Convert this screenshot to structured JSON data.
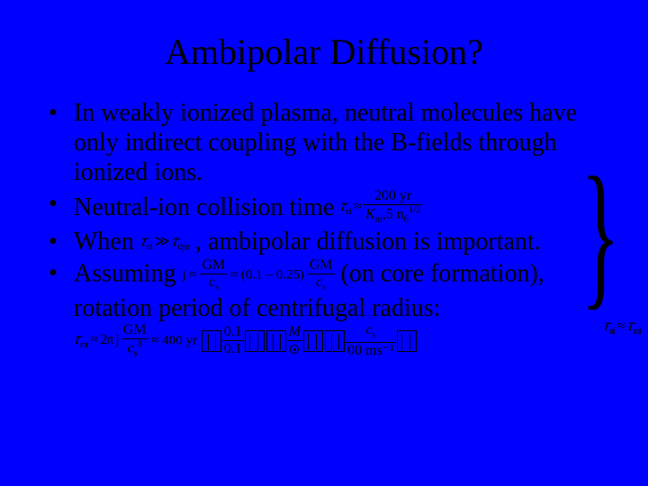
{
  "background_color": "#0000ff",
  "text_color": "#000000",
  "font_family": "Times New Roman",
  "title": {
    "text": "Ambipolar Diffusion?",
    "fontsize": 40,
    "align": "center"
  },
  "bullets": [
    {
      "text": "In weakly ionized plasma, neutral molecules have only indirect coupling with the B-fields through ionized ions."
    },
    {
      "text_before": "Neutral-ion collision time",
      "eq": {
        "lhs_prefix": "𝜏",
        "lhs_sub": "ni",
        "approx": "≈",
        "frac_num": "200 yr",
        "frac_den_prefix": "K",
        "frac_den_sub1": "ni",
        "frac_den_mid": ",5 n",
        "frac_den_sub2": "6",
        "frac_den_sup": "1/2"
      }
    },
    {
      "text_before": "When ",
      "eq_inline": {
        "t1_prefix": "𝜏",
        "t1_sub": "ni",
        "rel": "≫",
        "t2_prefix": "𝜏",
        "t2_sub": "dyn"
      },
      "text_after": " , ambipolar diffusion is important."
    },
    {
      "text_before": "Assuming ",
      "eq_j": {
        "lhs": "j ≈",
        "frac1_num": "GM",
        "frac1_den": "c_s",
        "mid": "≈ (0.1 – 0.25)",
        "frac2_num": "GM",
        "frac2_den": "c_s"
      },
      "text_mid": " (on core formation), rotation period of centrifugal radius:",
      "eq_bottom": {
        "lhs_prefix": "𝜏",
        "lhs_sub": "rot",
        "approx1": "≈ 2π j",
        "frac1_num": "GM",
        "frac1_den": "c_s³",
        "approx2": "≈ 400 yr",
        "tail_frac1_num": "0.1",
        "tail_frac1_den": "0.1",
        "tail_M": "M",
        "tail_frac2_num": "c_s",
        "tail_ms": "00 ms⁻¹"
      }
    }
  ],
  "brace_annotation": {
    "t1_prefix": "𝜏",
    "t1_sub": "ni",
    "rel": "≈",
    "t2_prefix": "𝜏",
    "t2_sub": "rot"
  },
  "bullet_fontsize": 28,
  "eq_fontsize": 16
}
